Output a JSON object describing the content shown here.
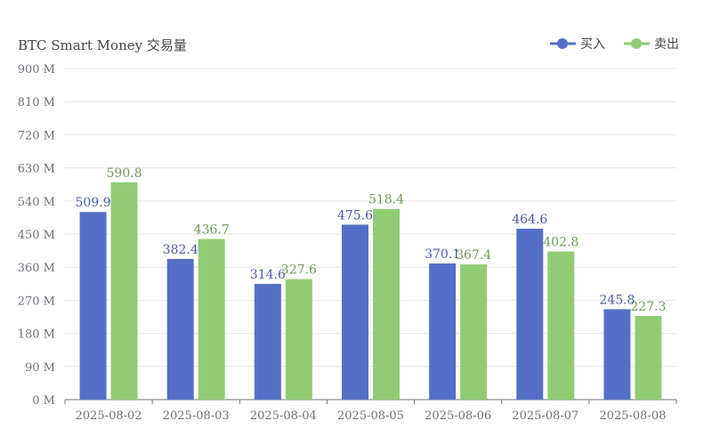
{
  "chart_data": {
    "type": "bar",
    "title": "BTC Smart Money 交易量",
    "categories": [
      "2025-08-02",
      "2025-08-03",
      "2025-08-04",
      "2025-08-05",
      "2025-08-06",
      "2025-08-07",
      "2025-08-08"
    ],
    "series": [
      {
        "name": "买入",
        "color": "#5470c6",
        "values": [
          509.9,
          382.4,
          314.6,
          475.6,
          370.1,
          464.6,
          245.8
        ]
      },
      {
        "name": "卖出",
        "color": "#91cc75",
        "values": [
          590.8,
          436.7,
          327.6,
          518.4,
          367.4,
          402.8,
          227.3
        ]
      }
    ],
    "ylim": [
      0,
      900
    ],
    "yticks": [
      "0 M",
      "90 M",
      "180 M",
      "270 M",
      "360 M",
      "450 M",
      "540 M",
      "630 M",
      "720 M",
      "810 M",
      "900 M"
    ],
    "ytick_values": [
      0,
      90,
      180,
      270,
      360,
      450,
      540,
      630,
      720,
      810,
      900
    ],
    "grid": true,
    "legend_position": "top-right",
    "data_labels": true
  }
}
